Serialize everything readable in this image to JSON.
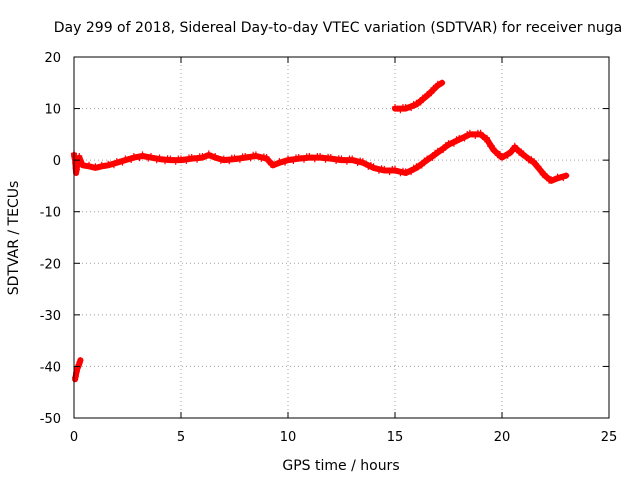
{
  "chart_data": {
    "type": "scatter",
    "title": "Day 299 of 2018, Sidereal Day-to-day VTEC variation (SDTVAR) for receiver nuga",
    "xlabel": "GPS time / hours",
    "ylabel": "SDTVAR / TECUs",
    "xlim": [
      0,
      25
    ],
    "ylim": [
      -50,
      20
    ],
    "xticks": [
      0,
      5,
      10,
      15,
      20,
      25
    ],
    "yticks": [
      -50,
      -40,
      -30,
      -20,
      -10,
      0,
      10,
      20
    ],
    "grid": true,
    "marker": "plus",
    "series": [
      {
        "name": "SDTVAR",
        "color": "#ff0000",
        "segments": [
          {
            "points": [
              [
                0.05,
                -42.5
              ],
              [
                0.1,
                -41.5
              ],
              [
                0.15,
                -40.5
              ],
              [
                0.2,
                -40.0
              ],
              [
                0.25,
                -39.5
              ],
              [
                0.3,
                -38.8
              ]
            ]
          },
          {
            "points": [
              [
                0.0,
                1.0
              ],
              [
                0.05,
                0.0
              ],
              [
                0.1,
                -2.5
              ],
              [
                0.15,
                -1.0
              ],
              [
                0.25,
                0.5
              ],
              [
                0.4,
                -1.0
              ],
              [
                0.7,
                -1.2
              ],
              [
                1.0,
                -1.5
              ],
              [
                1.3,
                -1.2
              ],
              [
                1.6,
                -1.0
              ],
              [
                2.0,
                -0.5
              ],
              [
                2.4,
                0.0
              ],
              [
                2.8,
                0.5
              ],
              [
                3.2,
                0.8
              ],
              [
                3.6,
                0.5
              ],
              [
                4.0,
                0.2
              ],
              [
                4.5,
                0.0
              ],
              [
                5.0,
                0.0
              ],
              [
                5.5,
                0.3
              ],
              [
                6.0,
                0.5
              ],
              [
                6.3,
                1.0
              ],
              [
                6.6,
                0.5
              ],
              [
                7.0,
                0.0
              ],
              [
                7.5,
                0.2
              ],
              [
                8.0,
                0.5
              ],
              [
                8.5,
                0.8
              ],
              [
                9.0,
                0.3
              ],
              [
                9.3,
                -1.0
              ],
              [
                9.6,
                -0.5
              ],
              [
                10.0,
                0.0
              ],
              [
                10.5,
                0.3
              ],
              [
                11.0,
                0.5
              ],
              [
                11.5,
                0.5
              ],
              [
                12.0,
                0.3
              ],
              [
                12.5,
                0.0
              ],
              [
                13.0,
                0.0
              ],
              [
                13.5,
                -0.5
              ],
              [
                14.0,
                -1.5
              ],
              [
                14.5,
                -2.0
              ],
              [
                15.0,
                -2.0
              ],
              [
                15.5,
                -2.5
              ],
              [
                16.0,
                -1.5
              ],
              [
                16.5,
                0.0
              ],
              [
                17.0,
                1.5
              ],
              [
                17.5,
                3.0
              ],
              [
                18.0,
                4.0
              ],
              [
                18.5,
                5.0
              ],
              [
                19.0,
                5.0
              ],
              [
                19.3,
                4.0
              ],
              [
                19.6,
                2.0
              ],
              [
                20.0,
                0.5
              ],
              [
                20.4,
                1.5
              ],
              [
                20.6,
                2.5
              ],
              [
                21.0,
                1.0
              ],
              [
                21.5,
                -0.5
              ],
              [
                21.7,
                -1.5
              ],
              [
                22.0,
                -3.0
              ],
              [
                22.3,
                -4.0
              ],
              [
                22.6,
                -3.5
              ],
              [
                23.0,
                -3.0
              ]
            ]
          },
          {
            "points": [
              [
                15.0,
                10.0
              ],
              [
                15.5,
                10.0
              ],
              [
                16.0,
                10.8
              ],
              [
                16.5,
                12.5
              ],
              [
                17.0,
                14.5
              ],
              [
                17.2,
                15.0
              ]
            ]
          }
        ]
      }
    ]
  }
}
